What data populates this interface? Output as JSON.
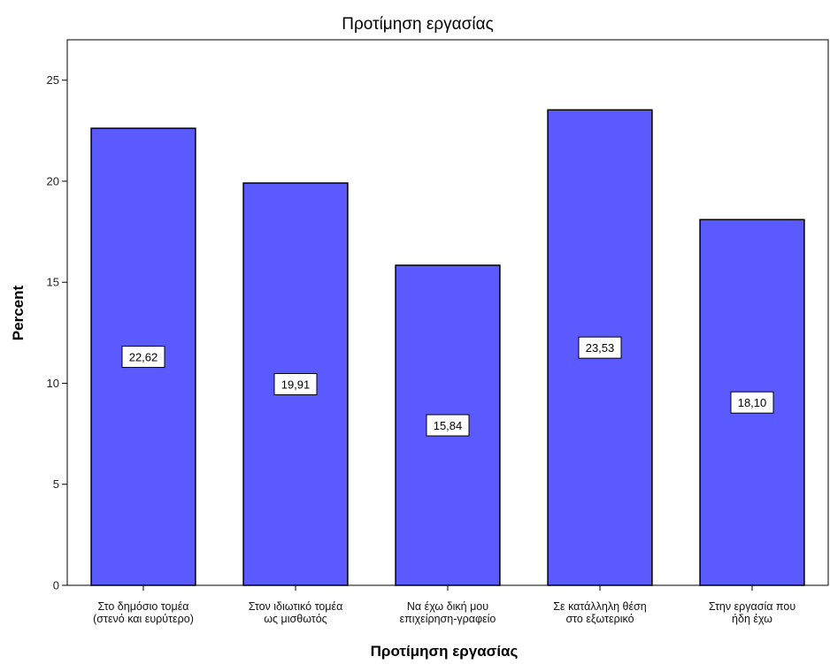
{
  "chart_data": {
    "type": "bar",
    "title": "Προτίμηση εργασίας",
    "xlabel": "Προτίμηση εργασίας",
    "ylabel": "Percent",
    "categories": [
      [
        "Στο δημόσιο τομέα",
        "(στενό και ευρύτερο)"
      ],
      [
        "Στον ιδιωτικό τομέα",
        "ως μισθωτός"
      ],
      [
        "Να έχω δική μου",
        "επιχείρηση-γραφείο"
      ],
      [
        "Σε κατάλληλη θέση",
        "στο εξωτερικό"
      ],
      [
        "Στην εργασία που",
        "ήδη έχω"
      ]
    ],
    "values": [
      22.62,
      19.91,
      15.84,
      23.53,
      18.1
    ],
    "data_labels": [
      "22,62",
      "19,91",
      "15,84",
      "23,53",
      "18,10"
    ],
    "ylim": [
      0,
      27
    ],
    "yticks": [
      0,
      5,
      10,
      15,
      20,
      25
    ],
    "grid": false,
    "bar_color": "#5a5aff",
    "bar_stroke": "#000000"
  }
}
